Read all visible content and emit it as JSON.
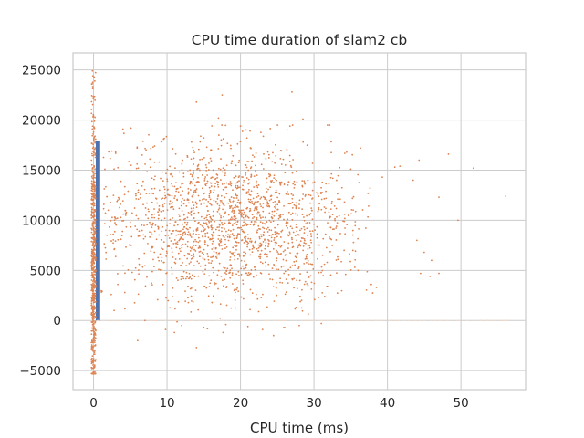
{
  "chart_data": {
    "type": "scatter",
    "title": "CPU time duration of slam2 cb",
    "xlabel": "CPU time (ms)",
    "ylabel": "",
    "xlim": [
      -2.8,
      58.8
    ],
    "ylim": [
      -6900,
      26700
    ],
    "grid": true,
    "style": "seaborn-whitegrid",
    "x_ticks": [
      0,
      10,
      20,
      30,
      40,
      50
    ],
    "y_ticks": [
      -5000,
      0,
      5000,
      10000,
      15000,
      20000,
      25000
    ],
    "x_tick_labels": [
      "0",
      "10",
      "20",
      "30",
      "40",
      "50"
    ],
    "y_tick_labels": [
      "−5000",
      "0",
      "5000",
      "10000",
      "15000",
      "20000",
      "25000"
    ],
    "series": [
      {
        "kind": "histogram-bars",
        "color": "#4c72b0",
        "bars": [
          {
            "x0": 0.3,
            "x1": 0.9,
            "value": 17900
          }
        ]
      },
      {
        "kind": "scatter",
        "color": "#dd8452",
        "marker_size_px": 1.8,
        "points_approx": 2600,
        "main_cloud": {
          "x_center": 19,
          "x_spread": 8,
          "x_range": [
            1,
            56.5
          ],
          "y_center": 9800,
          "y_spread": 3800,
          "y_range": [
            -2700,
            22800
          ]
        },
        "vertical_strip": {
          "x_range": [
            -0.3,
            0.3
          ],
          "y_range": [
            -5300,
            24900
          ]
        },
        "zero_line": {
          "y": 0,
          "x_range": [
            0,
            56.5
          ]
        },
        "points": [
          [
            27,
            22800
          ],
          [
            17.5,
            22500
          ],
          [
            14,
            21800
          ],
          [
            17,
            20200
          ],
          [
            28.5,
            20100
          ],
          [
            20,
            19400
          ],
          [
            4,
            19100
          ],
          [
            5.1,
            19200
          ],
          [
            21.3,
            18900
          ],
          [
            2.5,
            16900
          ],
          [
            3,
            16800
          ],
          [
            48.3,
            16600
          ],
          [
            44.3,
            16000
          ],
          [
            51.7,
            15200
          ],
          [
            41,
            15300
          ],
          [
            41.7,
            15400
          ],
          [
            39.3,
            14300
          ],
          [
            43.5,
            14000
          ],
          [
            47,
            12300
          ],
          [
            49.6,
            10000
          ],
          [
            56.1,
            12400
          ],
          [
            44,
            8000
          ],
          [
            45,
            6800
          ],
          [
            46,
            6000
          ],
          [
            44.5,
            4700
          ],
          [
            45.8,
            4400
          ],
          [
            47,
            4700
          ],
          [
            37.8,
            3600
          ],
          [
            38.5,
            3300
          ],
          [
            36,
            5000
          ],
          [
            2.8,
            1000
          ],
          [
            6,
            -2000
          ],
          [
            7,
            0
          ],
          [
            9.8,
            -900
          ],
          [
            14,
            -2700
          ],
          [
            24.5,
            -1500
          ],
          [
            23,
            -900
          ],
          [
            26,
            -700
          ],
          [
            28,
            -500
          ],
          [
            21,
            -600
          ],
          [
            12,
            -500
          ],
          [
            11,
            -1200
          ],
          [
            15,
            -700
          ],
          [
            18,
            -400
          ],
          [
            31,
            -300
          ]
        ]
      }
    ]
  }
}
